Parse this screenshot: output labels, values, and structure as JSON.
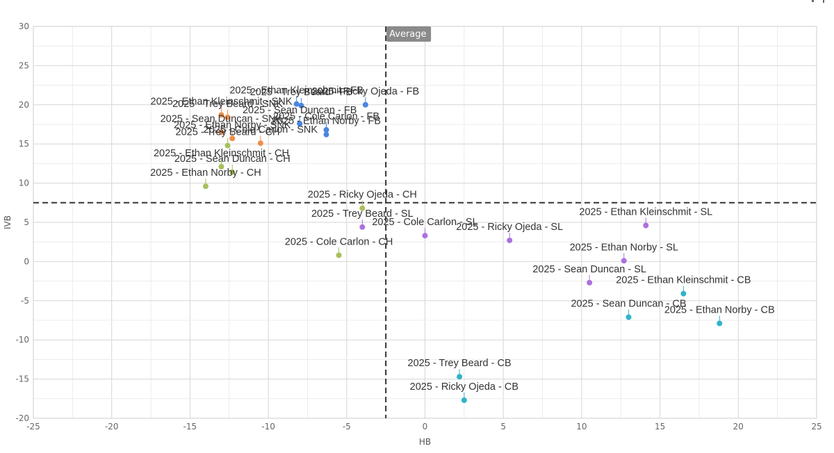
{
  "chart_data": {
    "type": "scatter",
    "title": "",
    "xlabel": "HB",
    "ylabel": "IVB",
    "xlim": [
      -25,
      25
    ],
    "ylim": [
      -20,
      30
    ],
    "x_ticks": [
      -25,
      -20,
      -15,
      -10,
      -5,
      0,
      5,
      10,
      15,
      20,
      25
    ],
    "y_ticks": [
      -20,
      -15,
      -10,
      -5,
      0,
      5,
      10,
      15,
      20,
      25,
      30
    ],
    "grid": true,
    "reference_lines": {
      "x": -2.5,
      "y": 7.5,
      "label": "Average"
    },
    "colors": {
      "FB": "#4a86e0",
      "SNK": "#ee8e4a",
      "CH": "#a7c05c",
      "SL": "#aa72dd",
      "CB": "#2fb4c8"
    },
    "points": [
      {
        "label": "2025 - Ricky Ojeda - FB",
        "pitch": "FB",
        "x": -3.8,
        "y": 20.0
      },
      {
        "label": "2025 - Ethan Kleinschmit - FB",
        "pitch": "FB",
        "x": -8.2,
        "y": 20.1
      },
      {
        "label": "2025 - Trey Beard - FB",
        "pitch": "FB",
        "x": -7.9,
        "y": 19.9
      },
      {
        "label": "2025 - Sean Duncan - FB",
        "pitch": "FB",
        "x": -8.0,
        "y": 17.6
      },
      {
        "label": "2025 - Cole Carlon - FB",
        "pitch": "FB",
        "x": -6.3,
        "y": 16.8
      },
      {
        "label": "2025 - Ethan Norby - FB",
        "pitch": "FB",
        "x": -6.3,
        "y": 16.2
      },
      {
        "label": "2025 - Ethan Kleinschmit - SNK",
        "pitch": "SNK",
        "x": -13.0,
        "y": 18.7
      },
      {
        "label": "2025 - Trey Beard - SNK",
        "pitch": "SNK",
        "x": -12.6,
        "y": 18.4
      },
      {
        "label": "2025 - Sean Duncan - SNK",
        "pitch": "SNK",
        "x": -13.0,
        "y": 16.5
      },
      {
        "label": "2025 - Ethan Norby - SNK",
        "pitch": "SNK",
        "x": -12.3,
        "y": 15.7
      },
      {
        "label": "2025 - Cole Carlon - SNK",
        "pitch": "SNK",
        "x": -10.5,
        "y": 15.1
      },
      {
        "label": "2025 - Trey Beard - CH",
        "pitch": "CH",
        "x": -12.6,
        "y": 14.8
      },
      {
        "label": "2025 - Sean Duncan - CH",
        "pitch": "CH",
        "x": -12.3,
        "y": 11.4
      },
      {
        "label": "2025 - Ethan Kleinschmit - CH",
        "pitch": "CH",
        "x": -13.0,
        "y": 12.1
      },
      {
        "label": "2025 - Ethan Norby - CH",
        "pitch": "CH",
        "x": -14.0,
        "y": 9.6
      },
      {
        "label": "2025 - Ricky Ojeda - CH",
        "pitch": "CH",
        "x": -4.0,
        "y": 6.8
      },
      {
        "label": "2025 - Cole Carlon - CH",
        "pitch": "CH",
        "x": -5.5,
        "y": 0.8
      },
      {
        "label": "2025 - Trey Beard - SL",
        "pitch": "SL",
        "x": -4.0,
        "y": 4.4
      },
      {
        "label": "2025 - Cole Carlon - SL",
        "pitch": "SL",
        "x": 0.0,
        "y": 3.3
      },
      {
        "label": "2025 - Ricky Ojeda - SL",
        "pitch": "SL",
        "x": 5.4,
        "y": 2.7
      },
      {
        "label": "2025 - Ethan Kleinschmit - SL",
        "pitch": "SL",
        "x": 14.1,
        "y": 4.6
      },
      {
        "label": "2025 - Ethan Norby - SL",
        "pitch": "SL",
        "x": 12.7,
        "y": 0.1
      },
      {
        "label": "2025 - Sean Duncan - SL",
        "pitch": "SL",
        "x": 10.5,
        "y": -2.7
      },
      {
        "label": "2025 - Ethan Kleinschmit - CB",
        "pitch": "CB",
        "x": 16.5,
        "y": -4.1
      },
      {
        "label": "2025 - Sean Duncan - CB",
        "pitch": "CB",
        "x": 13.0,
        "y": -7.1
      },
      {
        "label": "2025 - Ethan Norby - CB",
        "pitch": "CB",
        "x": 18.8,
        "y": -7.9
      },
      {
        "label": "2025 - Trey Beard - CB",
        "pitch": "CB",
        "x": 2.2,
        "y": -14.7
      },
      {
        "label": "2025 - Ricky Ojeda - CB",
        "pitch": "CB",
        "x": 2.5,
        "y": -17.7
      }
    ]
  }
}
